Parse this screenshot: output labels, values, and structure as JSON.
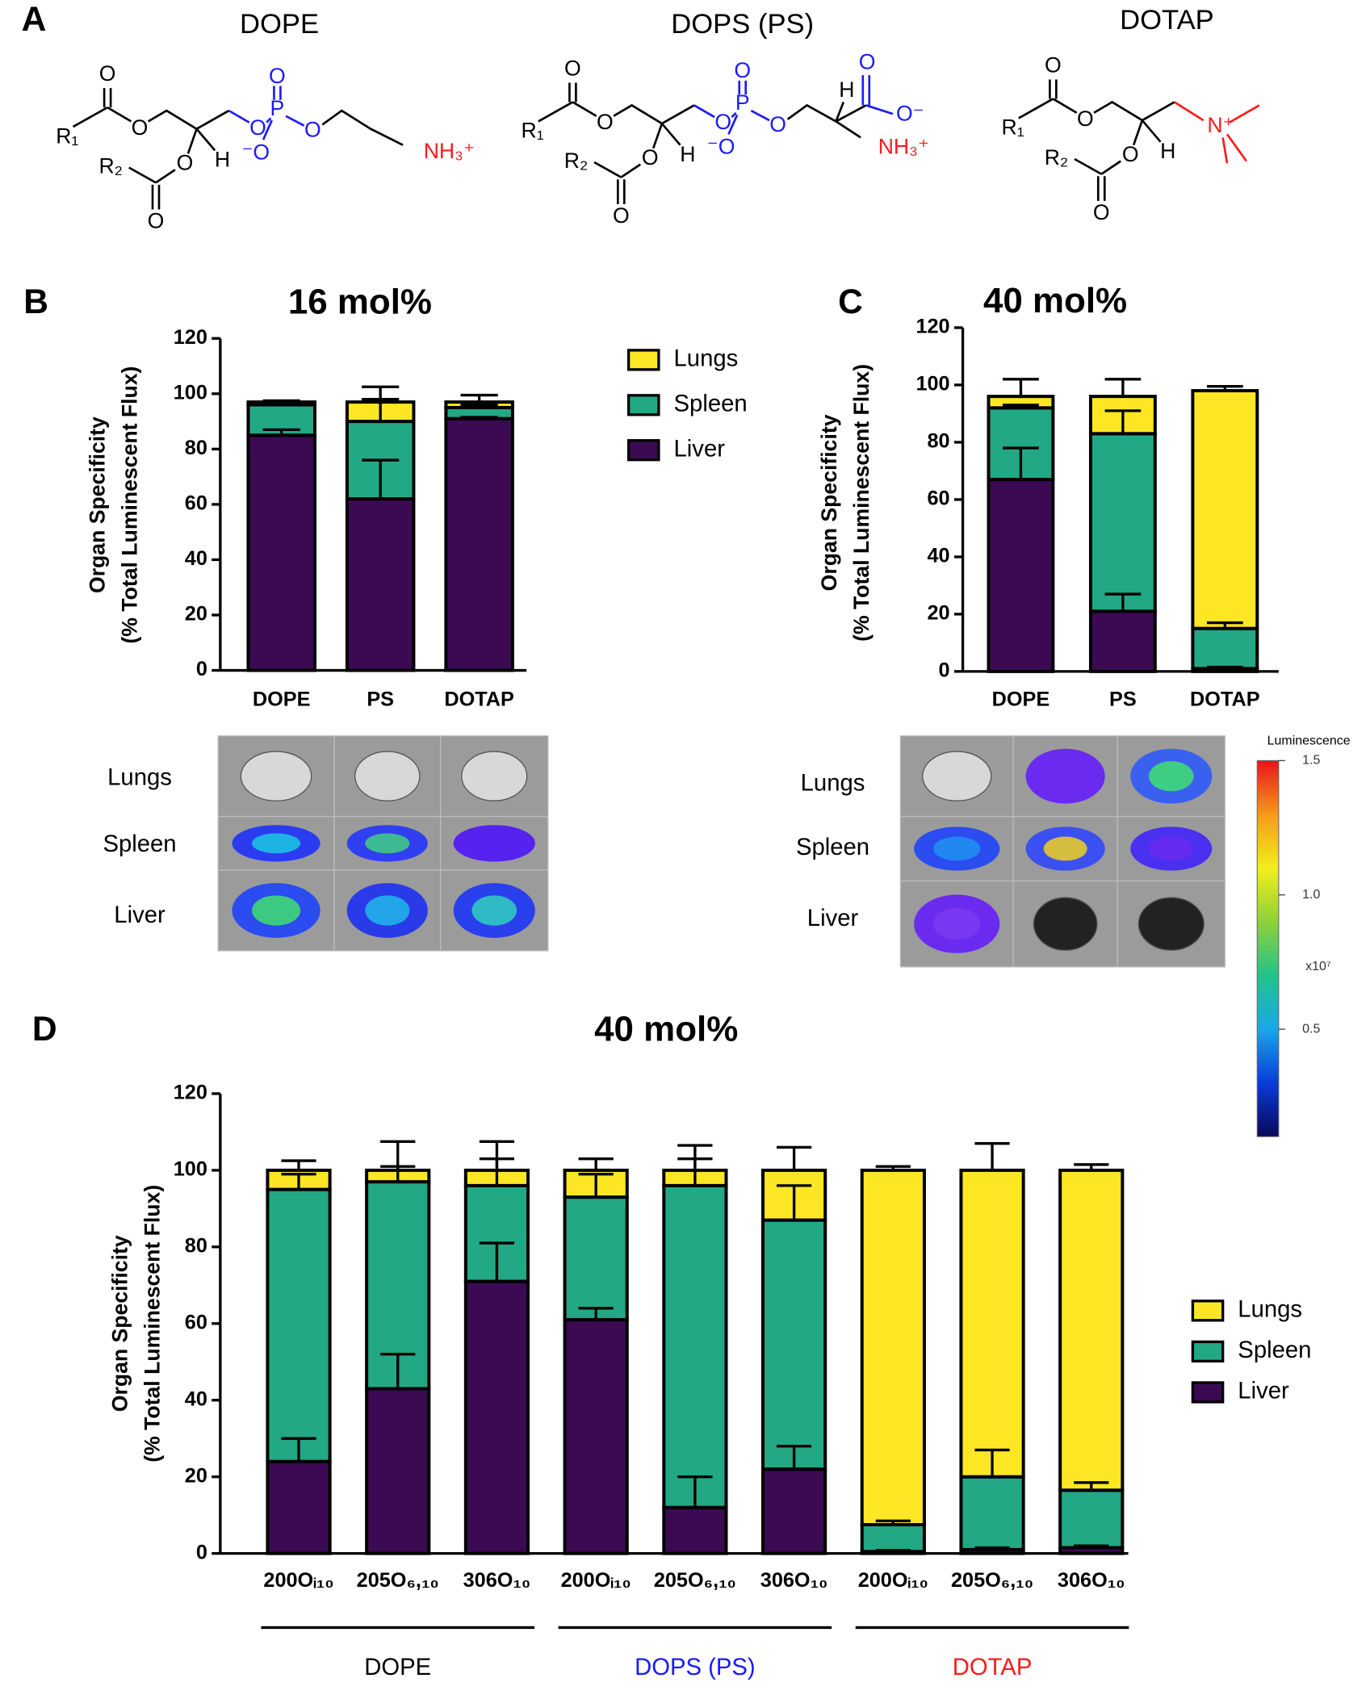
{
  "panel_a": {
    "panel": "A"
  },
  "structures": [
    {
      "name": "DOPE",
      "atoms": [
        "R₁",
        "O",
        "O",
        "O",
        "R₂",
        "O",
        "H",
        "O",
        "P",
        "O",
        "⁻O",
        "O",
        "NH₃⁺"
      ]
    },
    {
      "name": "DOPS (PS)",
      "atoms": [
        "R₁",
        "O",
        "O",
        "O",
        "R₂",
        "O",
        "H",
        "O",
        "P",
        "O",
        "⁻O",
        "O",
        "H",
        "O",
        "O⁻",
        "NH₃⁺"
      ]
    },
    {
      "name": "DOTAP",
      "atoms": [
        "R₁",
        "O",
        "O",
        "O",
        "R₂",
        "O",
        "H",
        "N⁺"
      ]
    }
  ],
  "chart_data": [
    {
      "type": "bar",
      "stacked": true,
      "panel": "B",
      "title": "16 mol%",
      "ylabel": [
        "Organ Specificity",
        "(% Total Luminescent Flux)"
      ],
      "categories": [
        "DOPE",
        "PS",
        "DOTAP"
      ],
      "series": [
        {
          "name": "Liver",
          "color": "#3b0a52",
          "values": [
            85,
            62,
            91
          ],
          "errors": [
            2,
            14,
            0.5
          ]
        },
        {
          "name": "Spleen",
          "color": "#22a884",
          "values": [
            11,
            28,
            4
          ],
          "errors": [
            0.5,
            8,
            1
          ]
        },
        {
          "name": "Lungs",
          "color": "#fde725",
          "values": [
            1,
            7,
            2
          ],
          "errors": [
            0.5,
            5.5,
            2.5
          ]
        }
      ],
      "ylim": [
        0,
        120
      ],
      "yticks": [
        0,
        20,
        40,
        60,
        80,
        100,
        120
      ],
      "legend": true
    },
    {
      "type": "bar",
      "stacked": true,
      "panel": "C",
      "title": "40 mol%",
      "ylabel": [
        "Organ Specificity",
        "(% Total Luminescent Flux)"
      ],
      "categories": [
        "DOPE",
        "PS",
        "DOTAP"
      ],
      "series": [
        {
          "name": "Liver",
          "color": "#3b0a52",
          "values": [
            67,
            21,
            1
          ],
          "errors": [
            11,
            6,
            0.5
          ]
        },
        {
          "name": "Spleen",
          "color": "#22a884",
          "values": [
            25,
            62,
            14
          ],
          "errors": [
            1,
            8,
            2
          ]
        },
        {
          "name": "Lungs",
          "color": "#fde725",
          "values": [
            4,
            13,
            83
          ],
          "errors": [
            6,
            6,
            1.5
          ]
        }
      ],
      "ylim": [
        0,
        120
      ],
      "yticks": [
        0,
        20,
        40,
        60,
        80,
        100,
        120
      ],
      "legend": false
    },
    {
      "type": "bar",
      "stacked": true,
      "panel": "D",
      "title": "40 mol%",
      "ylabel": [
        "Organ Specificity",
        "(% Total Luminescent Flux)"
      ],
      "categories": [
        "200Oᵢ₁₀",
        "205O₆,₁₀",
        "306O₁₀",
        "200Oᵢ₁₀",
        "205O₆,₁₀",
        "306O₁₀",
        "200Oᵢ₁₀",
        "205O₆,₁₀",
        "306O₁₀"
      ],
      "groups": [
        {
          "label": "DOPE",
          "color": "#000000"
        },
        {
          "label": "DOPS (PS)",
          "color": "#1a1aff"
        },
        {
          "label": "DOTAP",
          "color": "#ff1a1a"
        }
      ],
      "series": [
        {
          "name": "Liver",
          "color": "#3b0a52",
          "values": [
            24,
            43,
            71,
            61,
            12,
            22,
            0.5,
            1,
            1.5
          ],
          "errors": [
            6,
            9,
            10,
            3,
            8,
            6,
            0.3,
            0.5,
            0.5
          ]
        },
        {
          "name": "Spleen",
          "color": "#22a884",
          "values": [
            71,
            54,
            25,
            32,
            84,
            65,
            7,
            19,
            15
          ],
          "errors": [
            4,
            4,
            7,
            6,
            7,
            9,
            1,
            7,
            2
          ]
        },
        {
          "name": "Lungs",
          "color": "#fde725",
          "values": [
            5,
            3,
            4,
            7,
            4,
            13,
            92.5,
            80,
            83.5
          ],
          "errors": [
            2.5,
            7.5,
            7.5,
            3,
            6.5,
            6,
            1,
            7,
            1.5
          ]
        }
      ],
      "ylim": [
        0,
        120
      ],
      "yticks": [
        0,
        20,
        40,
        60,
        80,
        100,
        120
      ],
      "legend": true
    }
  ],
  "images": [
    {
      "rows": [
        "Lungs",
        "Spleen",
        "Liver"
      ]
    },
    {
      "rows": [
        "Lungs",
        "Spleen",
        "Liver"
      ]
    }
  ],
  "colorbar": {
    "title": "Luminescence",
    "ylim": [
      0.1,
      1.5
    ],
    "yticks": [
      1.5,
      {
        "value": 1,
        "label": "1.0"
      },
      0.5
    ],
    "unit": "x10⁷",
    "colors": [
      "#08085a",
      "#0a3cd8",
      "#1aa7e8",
      "#22c38a",
      "#8fd13a",
      "#f2ee1c",
      "#f59a1a",
      "#e8141a"
    ]
  }
}
